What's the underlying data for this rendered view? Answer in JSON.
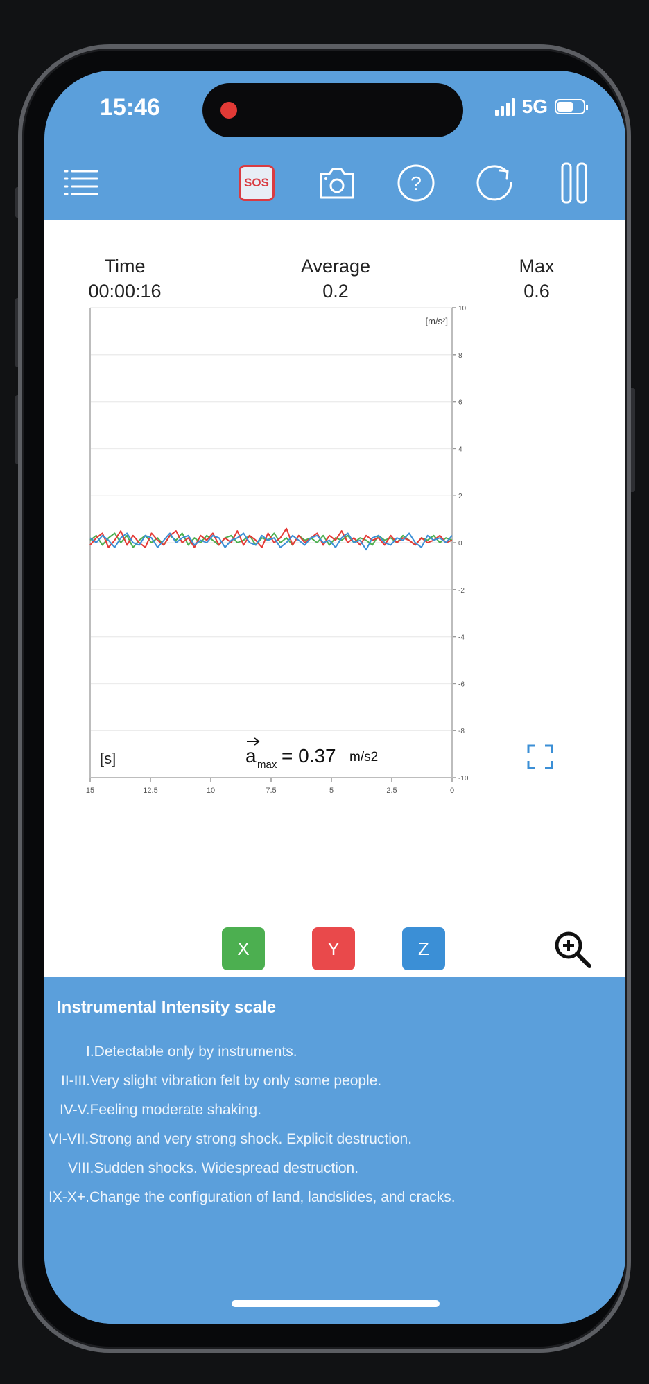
{
  "status": {
    "time": "15:46",
    "network": "5G"
  },
  "toolbar": {
    "sos_label": "SOS"
  },
  "stats": {
    "time_label": "Time",
    "time_value": "00:00:16",
    "avg_label": "Average",
    "avg_value": "0.2",
    "max_label": "Max",
    "max_value": "0.6"
  },
  "chart_data": {
    "type": "line",
    "xlabel": "[s]",
    "ylabel": "[m/s²]",
    "x_ticks": [
      "15",
      "12.5",
      "10",
      "7.5",
      "5",
      "2.5",
      "0"
    ],
    "y_ticks": [
      "10",
      "8",
      "6",
      "4",
      "2",
      "0",
      "-2",
      "-4",
      "-6",
      "-8",
      "-10"
    ],
    "xlim": [
      15,
      0
    ],
    "ylim": [
      -10,
      10
    ],
    "grid": true,
    "colors": {
      "X": "#4caf50",
      "Y": "#e53935",
      "Z": "#3b8fd6"
    },
    "series": [
      {
        "name": "X",
        "values": [
          0.1,
          0.3,
          -0.1,
          0.2,
          0.4,
          0.0,
          0.3,
          -0.2,
          0.1,
          0.3,
          0.0,
          0.2,
          -0.1,
          0.3,
          0.1,
          0.4,
          -0.1,
          0.2,
          0.0,
          0.3,
          0.1,
          -0.1,
          0.2,
          0.3,
          0.0,
          0.1,
          0.3,
          -0.1,
          0.2,
          0.1,
          0.4,
          0.0,
          0.2,
          -0.1,
          0.3,
          0.1,
          0.2,
          0.0,
          0.3,
          -0.1,
          0.2,
          0.1,
          0.3,
          0.0,
          0.2,
          0.1,
          -0.1,
          0.3,
          0.1,
          0.2,
          0.0,
          0.3,
          0.1,
          -0.1,
          0.2,
          0.1,
          0.3,
          0.0,
          0.2,
          0.1
        ]
      },
      {
        "name": "Y",
        "values": [
          -0.1,
          0.2,
          0.4,
          -0.2,
          0.1,
          0.5,
          -0.1,
          0.3,
          0.0,
          -0.2,
          0.4,
          0.1,
          -0.1,
          0.3,
          0.5,
          0.0,
          0.2,
          -0.2,
          0.3,
          0.1,
          0.4,
          -0.1,
          0.2,
          0.0,
          0.5,
          -0.1,
          0.3,
          0.1,
          -0.2,
          0.4,
          0.0,
          0.2,
          0.6,
          -0.1,
          0.3,
          0.0,
          0.2,
          0.4,
          -0.1,
          0.3,
          0.1,
          0.5,
          0.0,
          0.2,
          -0.1,
          0.3,
          0.1,
          0.2,
          -0.1,
          0.3,
          0.0,
          0.2,
          0.1,
          -0.1,
          0.2,
          0.0,
          0.1,
          0.3,
          0.0,
          0.1
        ]
      },
      {
        "name": "Z",
        "values": [
          0.2,
          0.0,
          0.3,
          0.1,
          -0.2,
          0.2,
          0.4,
          0.0,
          -0.1,
          0.3,
          0.2,
          -0.2,
          0.1,
          0.4,
          0.0,
          0.2,
          0.3,
          -0.1,
          0.1,
          0.0,
          0.3,
          0.2,
          -0.2,
          0.1,
          0.2,
          0.4,
          0.0,
          -0.1,
          0.3,
          0.1,
          0.2,
          -0.2,
          0.0,
          0.3,
          0.1,
          -0.1,
          0.2,
          0.3,
          0.0,
          0.1,
          -0.2,
          0.2,
          0.4,
          0.0,
          0.1,
          -0.3,
          0.2,
          0.3,
          0.0,
          -0.1,
          0.2,
          0.1,
          0.4,
          0.0,
          -0.2,
          0.3,
          0.1,
          0.2,
          0.0,
          0.3
        ]
      }
    ],
    "annotation": {
      "symbol": "a",
      "subscript": "max",
      "value": "= 0.37",
      "unit": "m/s2"
    }
  },
  "axis_buttons": [
    {
      "label": "X",
      "color": "#4caf50"
    },
    {
      "label": "Y",
      "color": "#e9494b"
    },
    {
      "label": "Z",
      "color": "#3b8fd6"
    }
  ],
  "panel": {
    "title": "Instrumental Intensity scale",
    "lines": [
      "I.Detectable only by instruments.",
      "II-III.Very slight vibration felt by only some people.",
      "IV-V.Feeling moderate shaking.",
      "VI-VII.Strong and very strong shock. Explicit destruction.",
      "VIII.Sudden shocks. Widespread destruction.",
      "IX-X+.Change the configuration of land, landslides, and cracks."
    ]
  }
}
